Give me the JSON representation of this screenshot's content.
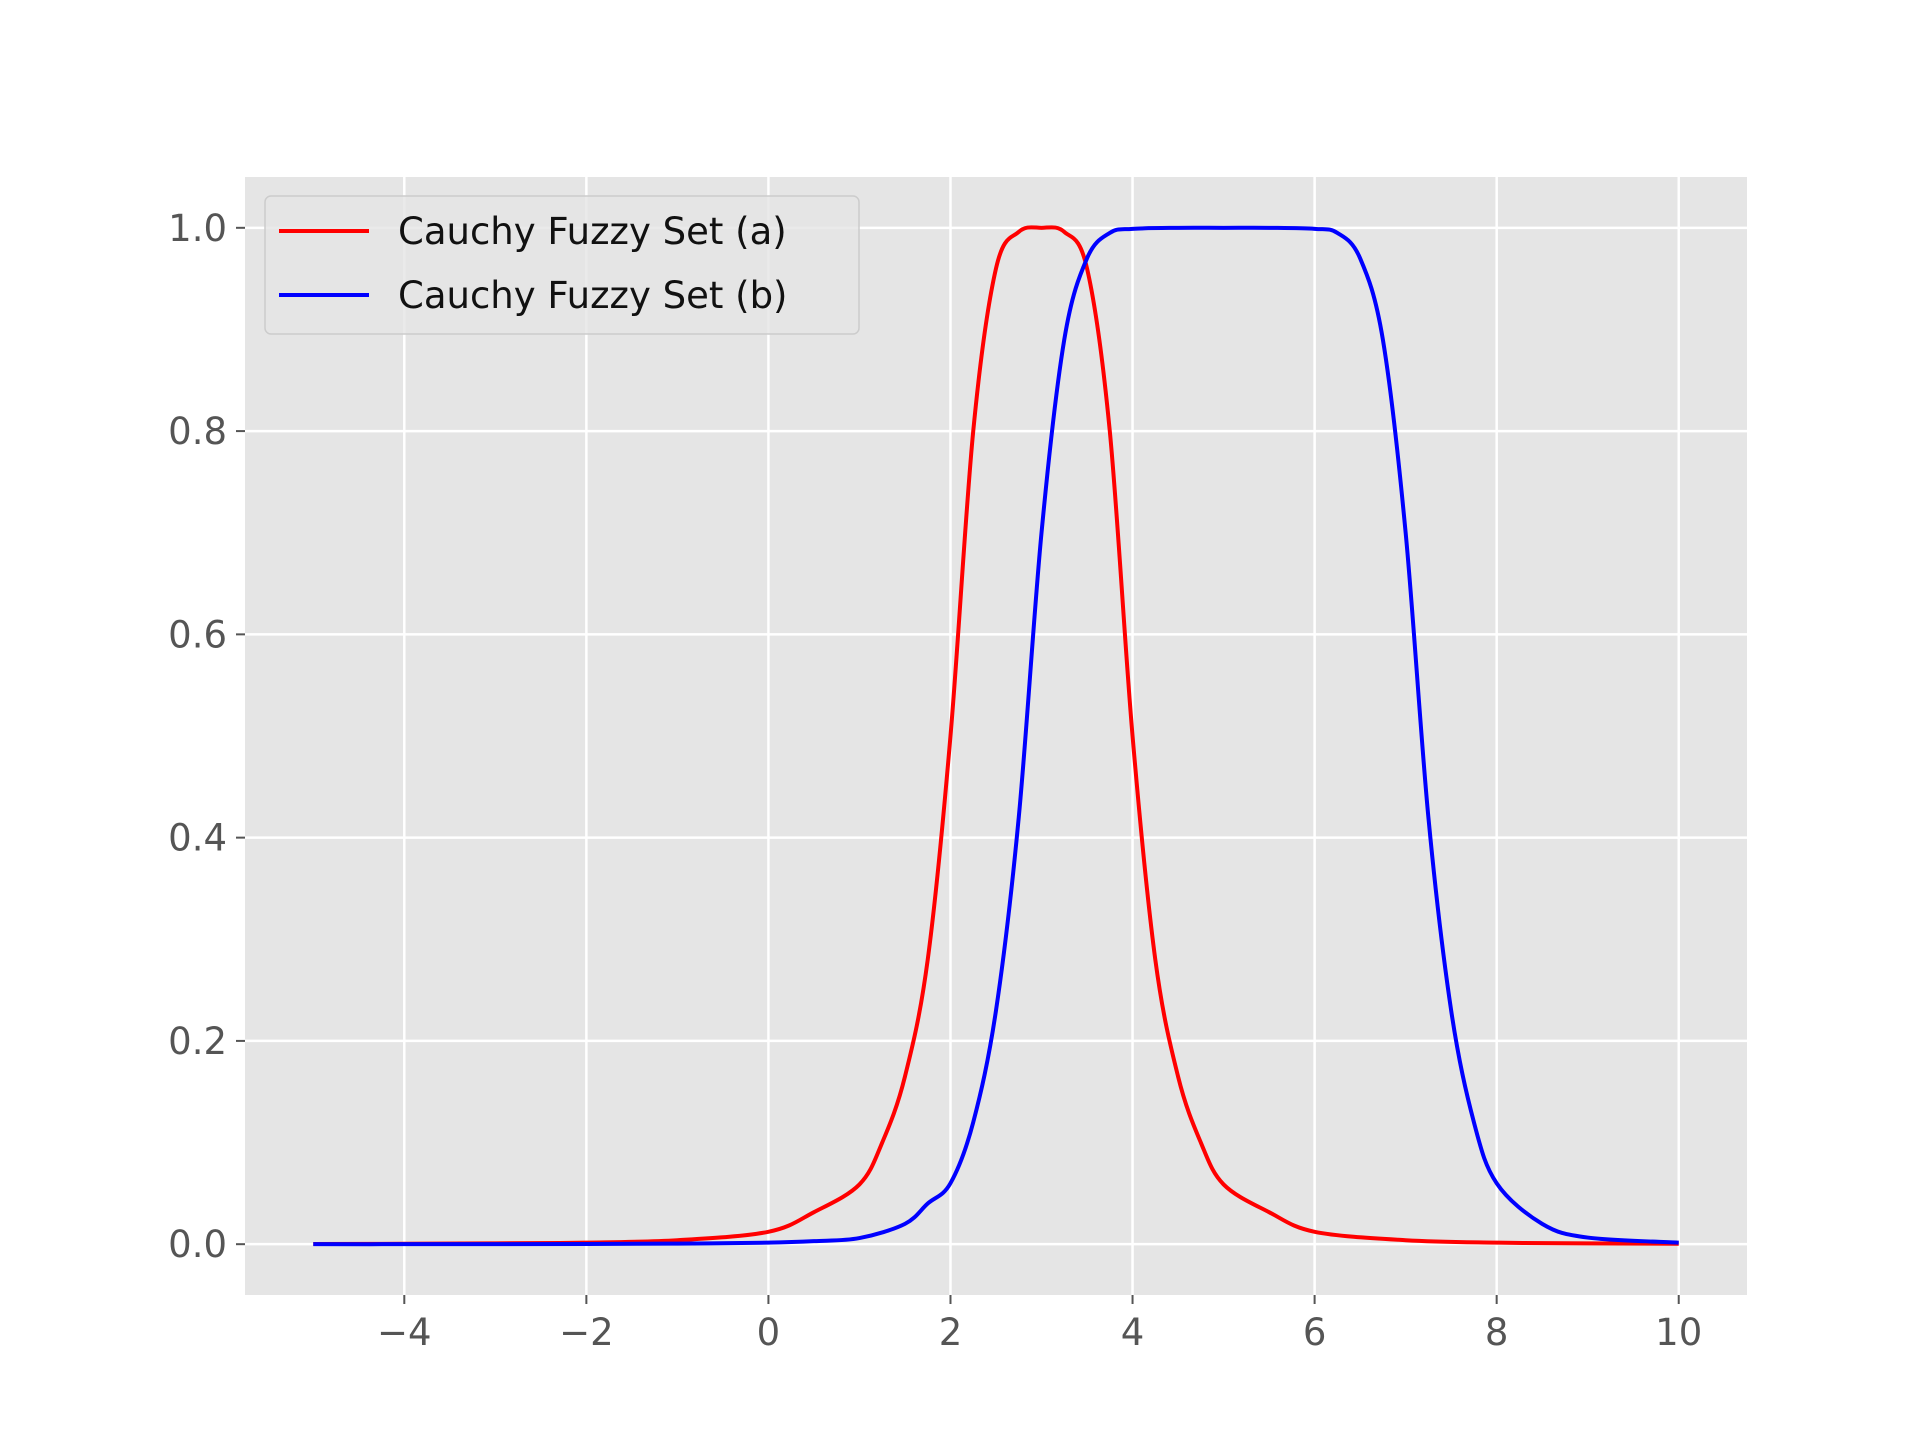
{
  "chart_data": {
    "type": "line",
    "title": "",
    "xlabel": "",
    "ylabel": "",
    "xlim": [
      -5.75,
      10.75
    ],
    "ylim": [
      -0.05,
      1.05
    ],
    "xticks": [
      -4,
      -2,
      0,
      2,
      4,
      6,
      8,
      10
    ],
    "xtick_labels": [
      "−4",
      "−2",
      "0",
      "2",
      "4",
      "6",
      "8",
      "10"
    ],
    "yticks": [
      0.0,
      0.2,
      0.4,
      0.6,
      0.8,
      1.0
    ],
    "ytick_labels": [
      "0.0",
      "0.2",
      "0.4",
      "0.6",
      "0.8",
      "1.0"
    ],
    "grid": true,
    "legend_position": "top-left",
    "background_color": "#e5e5e5",
    "grid_color": "#ffffff",
    "series": [
      {
        "name": "Cauchy Fuzzy Set (a)",
        "color": "#ff0000",
        "x": [
          -5,
          -4,
          -3,
          -2,
          -1,
          0,
          0.5,
          1,
          1.25,
          1.5,
          1.75,
          2,
          2.25,
          2.5,
          2.75,
          3,
          3.25,
          3.5,
          3.75,
          4,
          4.25,
          4.5,
          4.75,
          5,
          5.5,
          6,
          7,
          8,
          9,
          10
        ],
        "values": [
          0.0002,
          0.0004,
          0.0008,
          0.0015,
          0.0039,
          0.0122,
          0.0315,
          0.0588,
          0.1,
          0.165,
          0.28,
          0.5,
          0.8,
          0.96,
          0.996,
          1.0,
          0.996,
          0.96,
          0.8,
          0.5,
          0.28,
          0.165,
          0.1,
          0.0588,
          0.0315,
          0.0122,
          0.0039,
          0.0015,
          0.0008,
          0.0004
        ]
      },
      {
        "name": "Cauchy Fuzzy Set (b)",
        "color": "#0000ff",
        "x": [
          -5,
          -4,
          -3,
          -2,
          -1,
          0,
          0.5,
          1,
          1.5,
          1.75,
          2,
          2.25,
          2.5,
          2.75,
          3,
          3.25,
          3.5,
          3.75,
          4,
          4.5,
          5,
          5.5,
          6,
          6.25,
          6.5,
          6.75,
          7,
          7.25,
          7.5,
          7.75,
          8,
          8.5,
          9,
          10
        ],
        "values": [
          0.0,
          0.0,
          0.0001,
          0.0002,
          0.0006,
          0.0015,
          0.003,
          0.006,
          0.02,
          0.04,
          0.06,
          0.12,
          0.23,
          0.42,
          0.7,
          0.89,
          0.97,
          0.995,
          0.999,
          1.0,
          1.0,
          1.0,
          0.999,
          0.995,
          0.97,
          0.89,
          0.7,
          0.42,
          0.23,
          0.12,
          0.06,
          0.02,
          0.0065,
          0.0015
        ]
      }
    ]
  }
}
